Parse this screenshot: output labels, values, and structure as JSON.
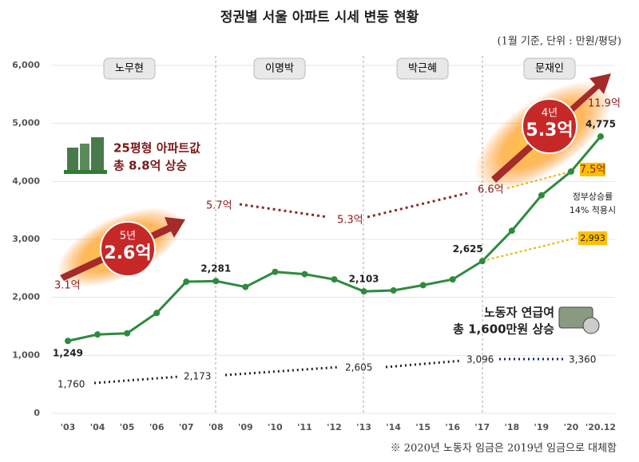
{
  "chart_data": {
    "type": "line",
    "title": "정권별 서울 아파트 시세 변동 현황",
    "subtitle": "(1월 기준, 단위 : 만원/평당)",
    "categories": [
      "'03",
      "'04",
      "'05",
      "'06",
      "'07",
      "'08",
      "'09",
      "'10",
      "'11",
      "'12",
      "'13",
      "'14",
      "'15",
      "'16",
      "'17",
      "'18",
      "'19",
      "'20",
      "'20.12"
    ],
    "series": [
      {
        "color": "#2e8b3e",
        "values": [
          1249,
          1360,
          1380,
          1730,
          2270,
          2281,
          2180,
          2440,
          2400,
          2310,
          2103,
          2120,
          2210,
          2310,
          2625,
          3150,
          3760,
          4170,
          4775
        ],
        "value_labels": [
          "1,249",
          null,
          null,
          null,
          null,
          "2,281",
          null,
          null,
          null,
          null,
          "2,103",
          null,
          null,
          null,
          "2,625",
          null,
          null,
          null,
          "4,775"
        ]
      }
    ],
    "ylim": [
      0,
      6000
    ],
    "yticks": [
      0,
      {
        "value": 1000,
        "label": "1,000"
      },
      {
        "value": 2000,
        "label": "2,000"
      },
      {
        "value": 3000,
        "label": "3,000"
      },
      {
        "value": 4000,
        "label": "4,000"
      },
      {
        "value": 5000,
        "label": "5,000"
      },
      {
        "value": 6000,
        "label": "6,000"
      }
    ],
    "grid": true,
    "regimes": [
      "노무현",
      "이명박",
      "박근혜",
      "문재인"
    ],
    "price_labels": [
      "3.1억",
      "5.7억",
      "5.3억",
      "6.6억",
      "11.9억",
      "7.5억",
      "2,993"
    ],
    "wage_labels": [
      "1,760",
      "2,173",
      "2,605",
      "3,096",
      "3,360"
    ],
    "boxes": {
      "apartment": [
        "25평형 아파트값",
        "총 8.8억 상승"
      ],
      "term1": [
        "5년",
        "2.6억"
      ],
      "term2": [
        "4년",
        "5.3억"
      ],
      "gov": [
        "정부상승률",
        "14% 적용시"
      ],
      "wage": [
        "노동자 연급여",
        "총 1,600만원 상승"
      ]
    },
    "footnote": "※ 2020년 노동자 임금은 2019년 임금으로 대체함"
  }
}
